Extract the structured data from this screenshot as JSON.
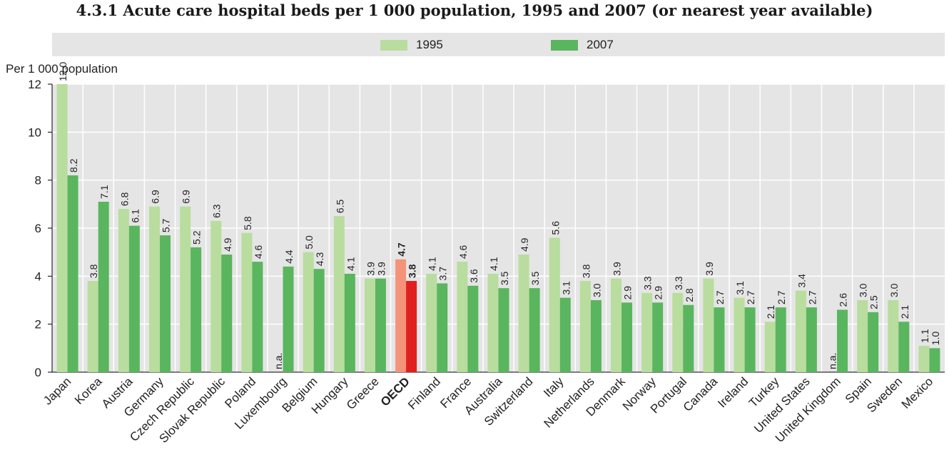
{
  "title": "4.3.1  Acute care hospital beds per 1 000 population, 1995 and 2007 (or nearest year available)",
  "colors": {
    "y1995": "#b8dd9e",
    "y2007": "#5ab55f",
    "oecd1995": "#f5927a",
    "oecd2007": "#e02020",
    "plot_bg": "#e5e5e5",
    "gridline": "#ffffff"
  },
  "chart_data": {
    "type": "bar",
    "title": "4.3.1  Acute care hospital beds per 1 000 population, 1995 and 2007 (or nearest year available)",
    "ylabel": "Per 1 000 population",
    "xlabel": "",
    "ylim": [
      0,
      12
    ],
    "yticks": [
      "0",
      "2",
      "4",
      "6",
      "8",
      "10",
      "12"
    ],
    "grid": true,
    "legend_position": "top",
    "categories": [
      "Japan",
      "Korea",
      "Austria",
      "Germany",
      "Czech Republic",
      "Slovak Republic",
      "Poland",
      "Luxembourg",
      "Belgium",
      "Hungary",
      "Greece",
      "OECD",
      "Finland",
      "France",
      "Australia",
      "Switzerland",
      "Italy",
      "Netherlands",
      "Denmark",
      "Norway",
      "Portugal",
      "Canada",
      "Ireland",
      "Turkey",
      "United States",
      "United Kingdom",
      "Spain",
      "Sweden",
      "Mexico"
    ],
    "highlight_category": "OECD",
    "na_label": "n.a.",
    "series": [
      {
        "name": "1995",
        "values": [
          12.0,
          3.8,
          6.8,
          6.9,
          6.9,
          6.3,
          5.8,
          null,
          5.0,
          6.5,
          3.9,
          4.7,
          4.1,
          4.6,
          4.1,
          4.9,
          5.6,
          3.8,
          3.9,
          3.3,
          3.3,
          3.9,
          3.1,
          2.1,
          3.4,
          null,
          3.0,
          3.0,
          1.1
        ],
        "labels": [
          "12.0",
          "3.8",
          "6.8",
          "6.9",
          "6.9",
          "6.3",
          "5.8",
          "n.a.",
          "5.0",
          "6.5",
          "3.9",
          "4.7",
          "4.1",
          "4.6",
          "4.1",
          "4.9",
          "5.6",
          "3.8",
          "3.9",
          "3.3",
          "3.3",
          "3.9",
          "3.1",
          "2.1",
          "3.4",
          "n.a.",
          "3.0",
          "3.0",
          "1.1"
        ]
      },
      {
        "name": "2007",
        "values": [
          8.2,
          7.1,
          6.1,
          5.7,
          5.2,
          4.9,
          4.6,
          4.4,
          4.3,
          4.1,
          3.9,
          3.8,
          3.7,
          3.6,
          3.5,
          3.5,
          3.1,
          3.0,
          2.9,
          2.9,
          2.8,
          2.7,
          2.7,
          2.7,
          2.7,
          2.6,
          2.5,
          2.1,
          1.0
        ],
        "labels": [
          "8.2",
          "7.1",
          "6.1",
          "5.7",
          "5.2",
          "4.9",
          "4.6",
          "4.4",
          "4.3",
          "4.1",
          "3.9",
          "3.8",
          "3.7",
          "3.6",
          "3.5",
          "3.5",
          "3.1",
          "3.0",
          "2.9",
          "2.9",
          "2.8",
          "2.7",
          "2.7",
          "2.7",
          "2.7",
          "2.6",
          "2.5",
          "2.1",
          "1.0"
        ]
      }
    ]
  }
}
